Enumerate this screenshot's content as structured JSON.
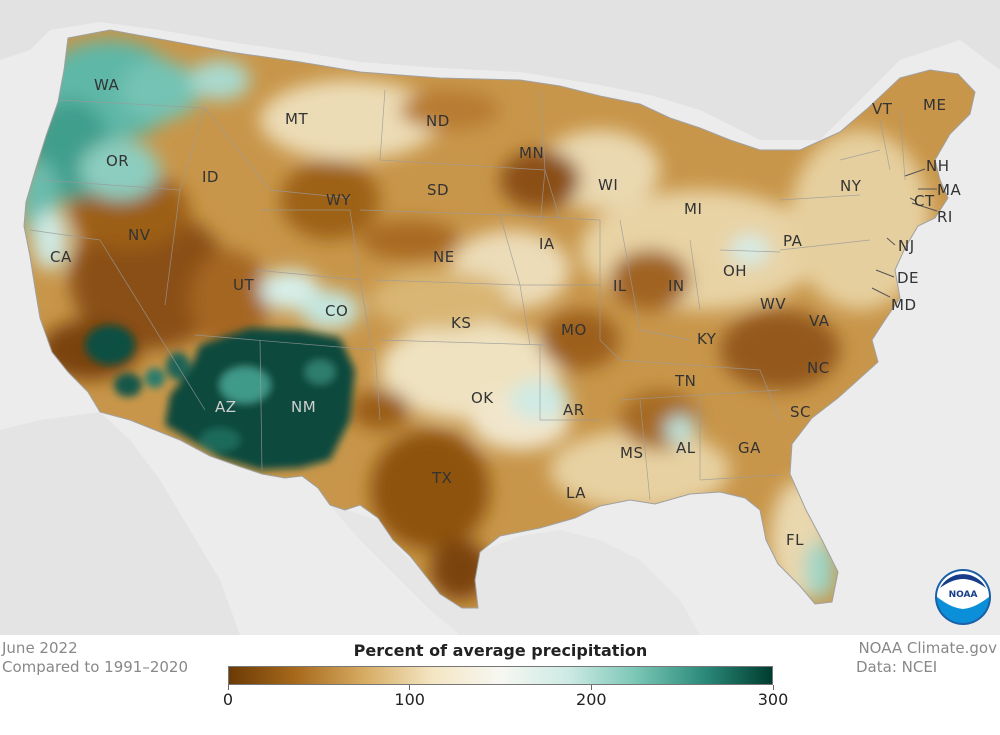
{
  "period": "June 2022",
  "baseline": "Compared to 1991–2020",
  "credit": "NOAA Climate.gov",
  "data_source": "Data: NCEI",
  "legend": {
    "title": "Percent of average precipitation",
    "ticks": [
      "0",
      "100",
      "200",
      "300"
    ],
    "tick_values": [
      0,
      100,
      200,
      300
    ],
    "range": [
      0,
      300
    ],
    "colors": [
      "#6b3a05",
      "#a86a1c",
      "#d6ac63",
      "#f4e6c3",
      "#f7f7f2",
      "#cdeae4",
      "#7ac6b5",
      "#2b8a7a",
      "#003c30"
    ]
  },
  "logo": {
    "icon": "noaa-logo-icon",
    "text": "NOAA"
  },
  "states": [
    {
      "abbr": "WA",
      "tone": "light"
    },
    {
      "abbr": "OR",
      "tone": "light"
    },
    {
      "abbr": "CA",
      "tone": "light"
    },
    {
      "abbr": "NV",
      "tone": "light"
    },
    {
      "abbr": "ID",
      "tone": "light"
    },
    {
      "abbr": "MT",
      "tone": "light"
    },
    {
      "abbr": "WY",
      "tone": "light"
    },
    {
      "abbr": "UT",
      "tone": "light"
    },
    {
      "abbr": "CO",
      "tone": "light"
    },
    {
      "abbr": "AZ",
      "tone": "dark"
    },
    {
      "abbr": "NM",
      "tone": "dark"
    },
    {
      "abbr": "ND",
      "tone": "light"
    },
    {
      "abbr": "SD",
      "tone": "light"
    },
    {
      "abbr": "NE",
      "tone": "light"
    },
    {
      "abbr": "KS",
      "tone": "light"
    },
    {
      "abbr": "OK",
      "tone": "light"
    },
    {
      "abbr": "TX",
      "tone": "light"
    },
    {
      "abbr": "MN",
      "tone": "light"
    },
    {
      "abbr": "IA",
      "tone": "light"
    },
    {
      "abbr": "MO",
      "tone": "light"
    },
    {
      "abbr": "AR",
      "tone": "light"
    },
    {
      "abbr": "LA",
      "tone": "light"
    },
    {
      "abbr": "WI",
      "tone": "light"
    },
    {
      "abbr": "IL",
      "tone": "light"
    },
    {
      "abbr": "MI",
      "tone": "light"
    },
    {
      "abbr": "IN",
      "tone": "light"
    },
    {
      "abbr": "OH",
      "tone": "light"
    },
    {
      "abbr": "KY",
      "tone": "light"
    },
    {
      "abbr": "TN",
      "tone": "light"
    },
    {
      "abbr": "MS",
      "tone": "light"
    },
    {
      "abbr": "AL",
      "tone": "light"
    },
    {
      "abbr": "GA",
      "tone": "light"
    },
    {
      "abbr": "FL",
      "tone": "light"
    },
    {
      "abbr": "SC",
      "tone": "light"
    },
    {
      "abbr": "NC",
      "tone": "light"
    },
    {
      "abbr": "VA",
      "tone": "light"
    },
    {
      "abbr": "WV",
      "tone": "light"
    },
    {
      "abbr": "PA",
      "tone": "light"
    },
    {
      "abbr": "NY",
      "tone": "light"
    },
    {
      "abbr": "VT",
      "tone": "light"
    },
    {
      "abbr": "ME",
      "tone": "light"
    },
    {
      "abbr": "NH",
      "tone": "light"
    },
    {
      "abbr": "MA",
      "tone": "light"
    },
    {
      "abbr": "RI",
      "tone": "light"
    },
    {
      "abbr": "CT",
      "tone": "light"
    },
    {
      "abbr": "NJ",
      "tone": "light"
    },
    {
      "abbr": "DE",
      "tone": "light"
    },
    {
      "abbr": "MD",
      "tone": "light"
    }
  ]
}
